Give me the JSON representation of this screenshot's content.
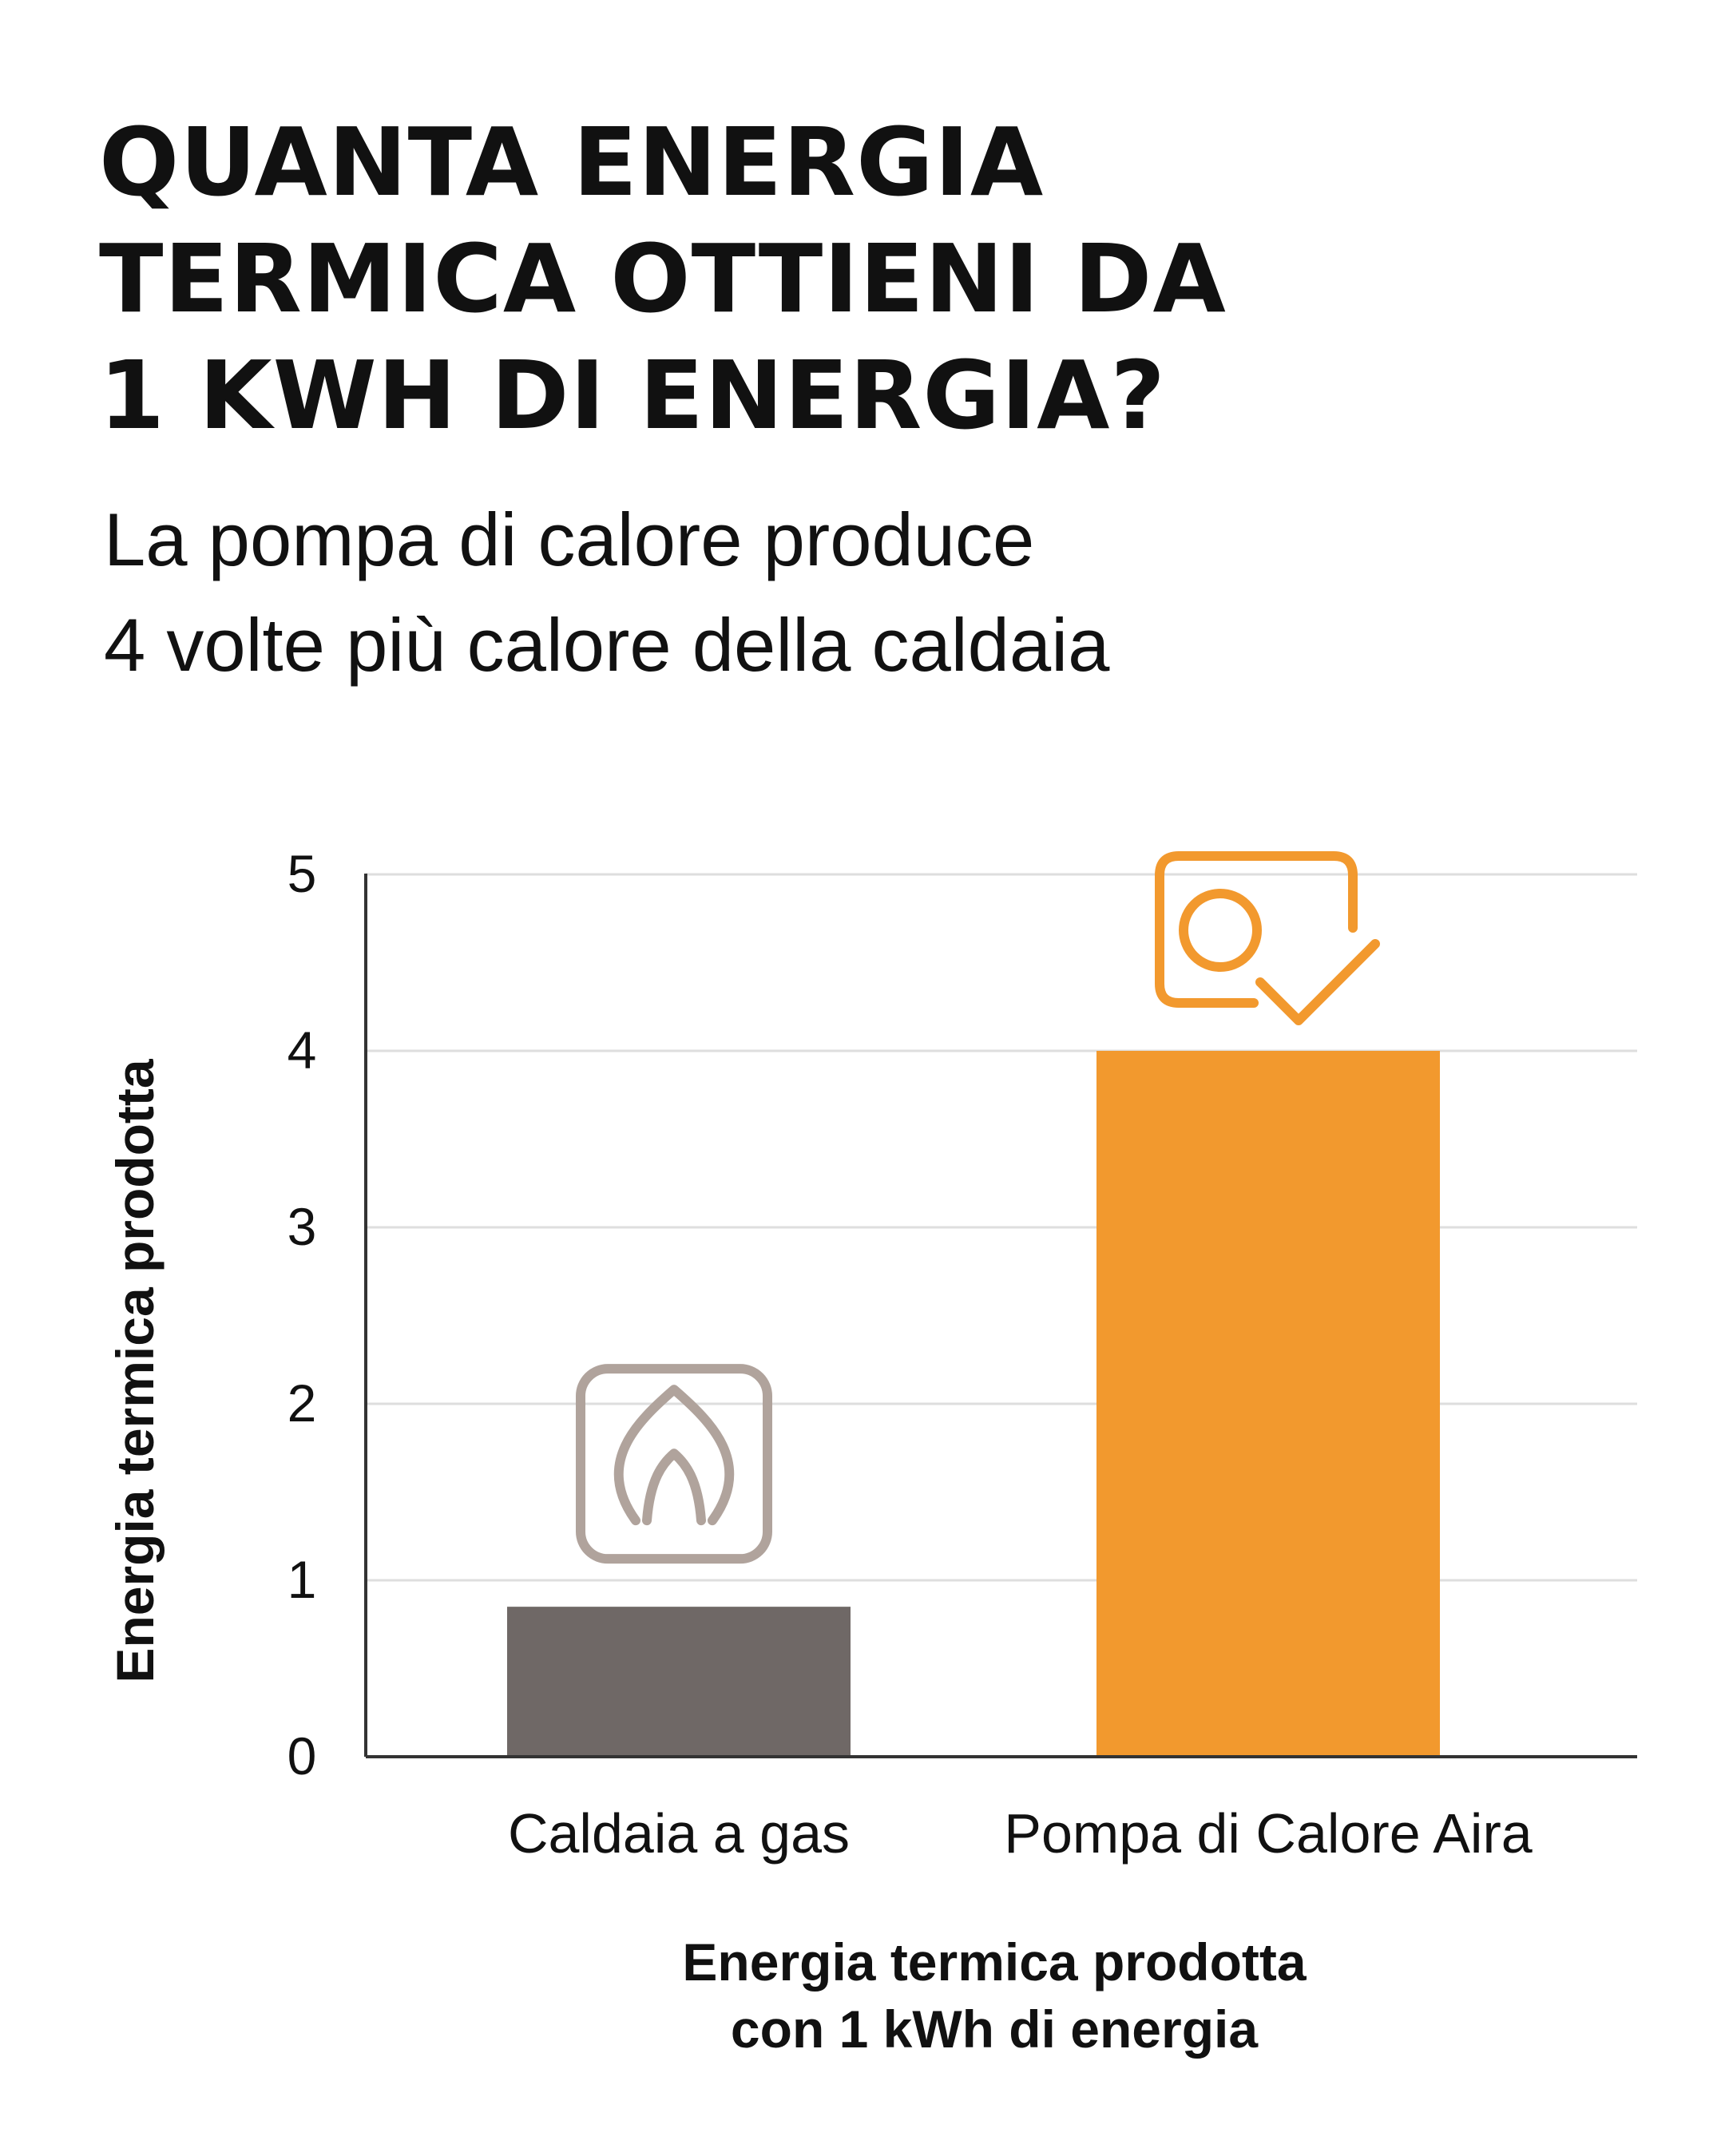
{
  "title_lines": [
    "QUANTA ENERGIA",
    "TERMICA OTTIENI DA",
    "1 KWH DI ENERGIA?"
  ],
  "subtitle_lines": [
    "La pompa di calore produce",
    "4 volte più calore della caldaia"
  ],
  "chart_data": {
    "type": "bar",
    "categories": [
      "Caldaia a gas",
      "Pompa di Calore Aira"
    ],
    "values": [
      0.85,
      4.0
    ],
    "colors": [
      "#6f6866",
      "#f2992e"
    ],
    "icons": [
      "flame-icon",
      "heat-pump-check-icon"
    ],
    "icon_colors": [
      "#b0a39c",
      "#f2992e"
    ],
    "ylabel": "Energia termica prodotta",
    "xlabel_lines": [
      "Energia termica prodotta",
      "con 1 kWh di energia"
    ],
    "ylim": [
      0,
      5
    ],
    "yticks": [
      "0",
      "1",
      "2",
      "3",
      "4",
      "5"
    ],
    "grid": true,
    "gridline_color": "#dedede",
    "axis_color": "#333333"
  }
}
